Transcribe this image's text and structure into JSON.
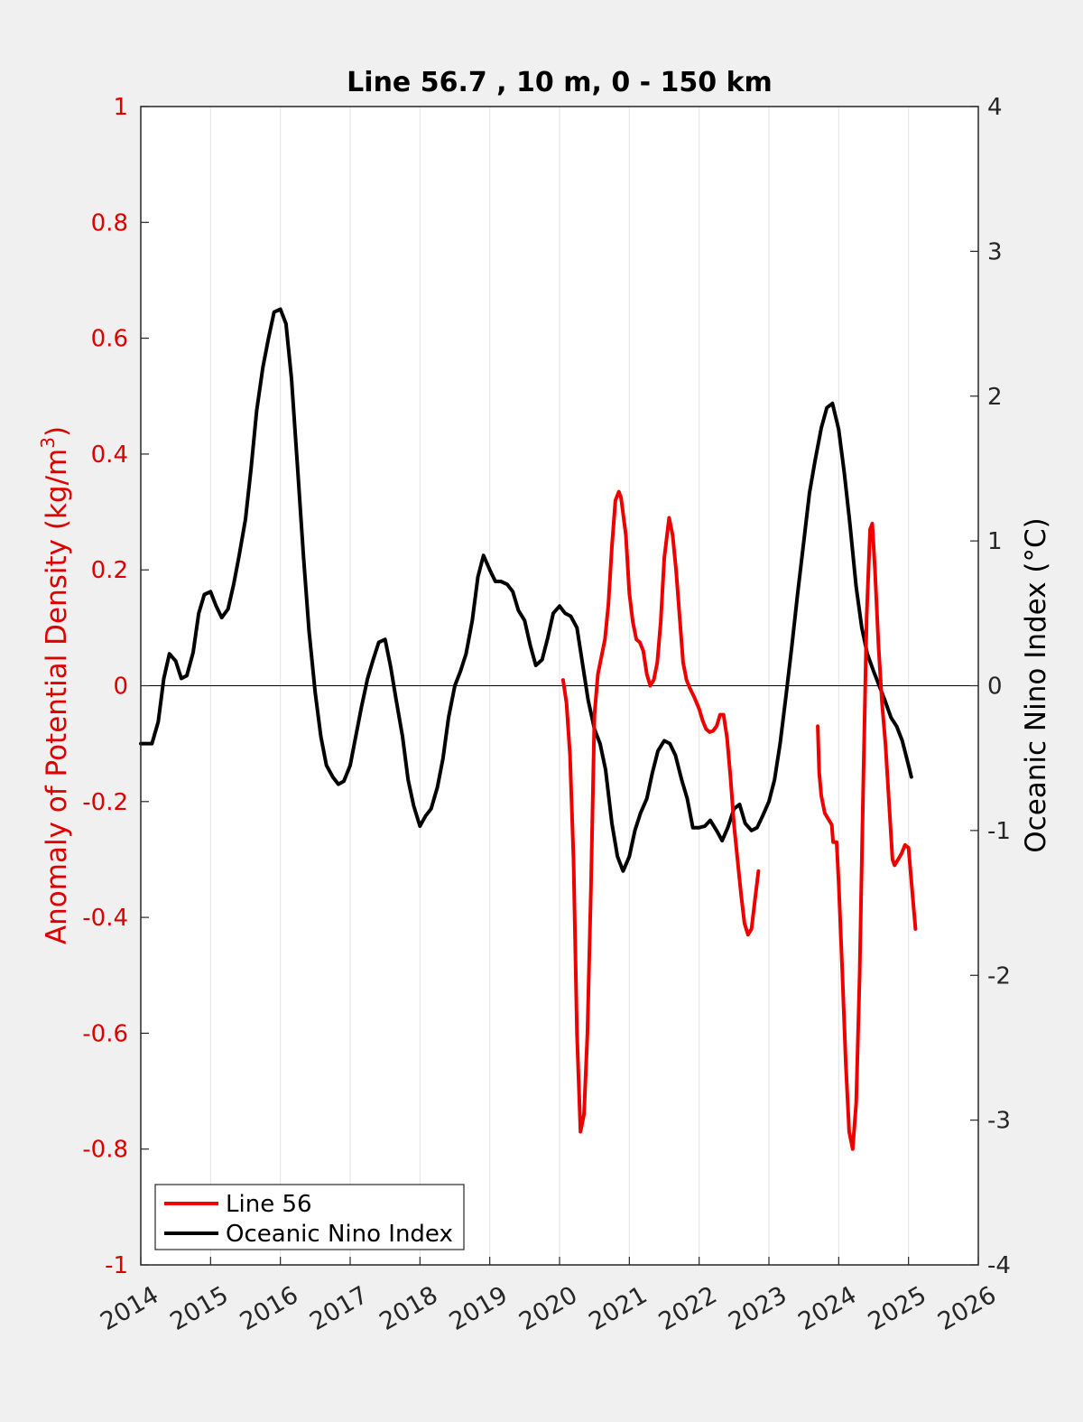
{
  "chart_data": {
    "type": "line",
    "title": "Line 56.7 , 10 m, 0 - 150 km",
    "xlabel": "",
    "ylabel_left": "Anomaly of Potential Density (kg/m",
    "ylabel_left_sup": "3",
    "ylabel_left_close": ")",
    "ylabel_right": "Oceanic Nino Index (°C)",
    "xlim": [
      2014,
      2026
    ],
    "ylim_left": [
      -1,
      1
    ],
    "ylim_right": [
      -4,
      4
    ],
    "x_ticks": [
      "2014",
      "2015",
      "2016",
      "2017",
      "2018",
      "2019",
      "2020",
      "2021",
      "2022",
      "2023",
      "2024",
      "2025",
      "2026"
    ],
    "y_ticks_left": [
      "1",
      "0.8",
      "0.6",
      "0.4",
      "0.2",
      "0",
      "-0.2",
      "-0.4",
      "-0.6",
      "-0.8",
      "-1"
    ],
    "y_ticks_right": [
      "4",
      "3",
      "2",
      "1",
      "0",
      "-1",
      "-2",
      "-3",
      "-4"
    ],
    "grid": "vertical",
    "legend_position": "bottom-left",
    "colors": {
      "line56": "#ee0000",
      "oni": "#000000",
      "left_axis": "#dd0000"
    },
    "series": [
      {
        "name": "Line 56",
        "axis": "left",
        "segments": [
          [
            [
              2020.05,
              0.01
            ],
            [
              2020.1,
              -0.03
            ],
            [
              2020.15,
              -0.12
            ],
            [
              2020.2,
              -0.3
            ],
            [
              2020.25,
              -0.6
            ],
            [
              2020.3,
              -0.77
            ],
            [
              2020.35,
              -0.74
            ],
            [
              2020.4,
              -0.6
            ],
            [
              2020.45,
              -0.35
            ],
            [
              2020.5,
              -0.05
            ],
            [
              2020.55,
              0.02
            ],
            [
              2020.6,
              0.05
            ],
            [
              2020.65,
              0.08
            ],
            [
              2020.7,
              0.14
            ],
            [
              2020.75,
              0.24
            ],
            [
              2020.8,
              0.32
            ],
            [
              2020.85,
              0.335
            ],
            [
              2020.88,
              0.325
            ],
            [
              2020.95,
              0.26
            ],
            [
              2021.0,
              0.16
            ],
            [
              2021.05,
              0.11
            ],
            [
              2021.1,
              0.08
            ],
            [
              2021.15,
              0.075
            ],
            [
              2021.2,
              0.06
            ],
            [
              2021.25,
              0.02
            ],
            [
              2021.3,
              0.0
            ],
            [
              2021.35,
              0.01
            ],
            [
              2021.4,
              0.04
            ],
            [
              2021.45,
              0.11
            ],
            [
              2021.5,
              0.22
            ],
            [
              2021.57,
              0.29
            ],
            [
              2021.62,
              0.26
            ],
            [
              2021.67,
              0.2
            ],
            [
              2021.72,
              0.12
            ],
            [
              2021.77,
              0.04
            ],
            [
              2021.82,
              0.01
            ],
            [
              2021.87,
              -0.005
            ],
            [
              2021.93,
              -0.02
            ],
            [
              2022.0,
              -0.04
            ],
            [
              2022.05,
              -0.06
            ],
            [
              2022.1,
              -0.075
            ],
            [
              2022.15,
              -0.08
            ],
            [
              2022.2,
              -0.078
            ],
            [
              2022.25,
              -0.07
            ],
            [
              2022.3,
              -0.05
            ],
            [
              2022.35,
              -0.05
            ],
            [
              2022.4,
              -0.09
            ],
            [
              2022.45,
              -0.16
            ],
            [
              2022.5,
              -0.24
            ],
            [
              2022.55,
              -0.3
            ],
            [
              2022.6,
              -0.36
            ],
            [
              2022.65,
              -0.41
            ],
            [
              2022.7,
              -0.43
            ],
            [
              2022.75,
              -0.42
            ],
            [
              2022.8,
              -0.37
            ],
            [
              2022.85,
              -0.32
            ]
          ],
          [
            [
              2023.7,
              -0.07
            ],
            [
              2023.72,
              -0.15
            ],
            [
              2023.75,
              -0.19
            ],
            [
              2023.8,
              -0.22
            ],
            [
              2023.85,
              -0.23
            ],
            [
              2023.9,
              -0.24
            ],
            [
              2023.92,
              -0.27
            ],
            [
              2023.97,
              -0.27
            ],
            [
              2024.0,
              -0.34
            ],
            [
              2024.05,
              -0.49
            ],
            [
              2024.1,
              -0.65
            ],
            [
              2024.15,
              -0.77
            ],
            [
              2024.2,
              -0.8
            ],
            [
              2024.25,
              -0.72
            ],
            [
              2024.3,
              -0.5
            ],
            [
              2024.35,
              -0.18
            ],
            [
              2024.4,
              0.12
            ],
            [
              2024.45,
              0.27
            ],
            [
              2024.48,
              0.28
            ],
            [
              2024.52,
              0.2
            ],
            [
              2024.57,
              0.07
            ],
            [
              2024.62,
              -0.03
            ],
            [
              2024.67,
              -0.1
            ],
            [
              2024.72,
              -0.2
            ],
            [
              2024.77,
              -0.3
            ],
            [
              2024.8,
              -0.31
            ],
            [
              2024.85,
              -0.3
            ],
            [
              2024.9,
              -0.29
            ],
            [
              2024.95,
              -0.275
            ],
            [
              2025.0,
              -0.28
            ],
            [
              2025.05,
              -0.35
            ],
            [
              2025.1,
              -0.42
            ]
          ]
        ]
      },
      {
        "name": "Oceanic Nino Index",
        "axis": "right",
        "segments": [
          [
            [
              2014.0,
              -0.4
            ],
            [
              2014.08,
              -0.4
            ],
            [
              2014.16,
              -0.4
            ],
            [
              2014.25,
              -0.25
            ],
            [
              2014.33,
              0.05
            ],
            [
              2014.41,
              0.22
            ],
            [
              2014.5,
              0.17
            ],
            [
              2014.58,
              0.05
            ],
            [
              2014.66,
              0.07
            ],
            [
              2014.75,
              0.23
            ],
            [
              2014.83,
              0.5
            ],
            [
              2014.91,
              0.63
            ],
            [
              2015.0,
              0.65
            ],
            [
              2015.08,
              0.55
            ],
            [
              2015.16,
              0.47
            ],
            [
              2015.25,
              0.53
            ],
            [
              2015.33,
              0.7
            ],
            [
              2015.41,
              0.9
            ],
            [
              2015.5,
              1.15
            ],
            [
              2015.58,
              1.5
            ],
            [
              2015.66,
              1.9
            ],
            [
              2015.75,
              2.2
            ],
            [
              2015.83,
              2.4
            ],
            [
              2015.91,
              2.58
            ],
            [
              2016.0,
              2.6
            ],
            [
              2016.08,
              2.5
            ],
            [
              2016.16,
              2.12
            ],
            [
              2016.25,
              1.48
            ],
            [
              2016.33,
              0.9
            ],
            [
              2016.41,
              0.38
            ],
            [
              2016.5,
              -0.05
            ],
            [
              2016.58,
              -0.35
            ],
            [
              2016.66,
              -0.55
            ],
            [
              2016.75,
              -0.63
            ],
            [
              2016.83,
              -0.68
            ],
            [
              2016.91,
              -0.66
            ],
            [
              2017.0,
              -0.55
            ],
            [
              2017.08,
              -0.35
            ],
            [
              2017.16,
              -0.15
            ],
            [
              2017.25,
              0.05
            ],
            [
              2017.33,
              0.18
            ],
            [
              2017.41,
              0.3
            ],
            [
              2017.5,
              0.32
            ],
            [
              2017.58,
              0.13
            ],
            [
              2017.66,
              -0.1
            ],
            [
              2017.75,
              -0.35
            ],
            [
              2017.83,
              -0.65
            ],
            [
              2017.91,
              -0.83
            ],
            [
              2018.0,
              -0.97
            ],
            [
              2018.08,
              -0.9
            ],
            [
              2018.16,
              -0.85
            ],
            [
              2018.25,
              -0.7
            ],
            [
              2018.33,
              -0.5
            ],
            [
              2018.41,
              -0.22
            ],
            [
              2018.5,
              0.0
            ],
            [
              2018.58,
              0.1
            ],
            [
              2018.66,
              0.22
            ],
            [
              2018.75,
              0.45
            ],
            [
              2018.83,
              0.75
            ],
            [
              2018.91,
              0.9
            ],
            [
              2019.0,
              0.8
            ],
            [
              2019.08,
              0.72
            ],
            [
              2019.16,
              0.72
            ],
            [
              2019.25,
              0.7
            ],
            [
              2019.33,
              0.65
            ],
            [
              2019.41,
              0.52
            ],
            [
              2019.5,
              0.45
            ],
            [
              2019.58,
              0.28
            ],
            [
              2019.66,
              0.14
            ],
            [
              2019.75,
              0.18
            ],
            [
              2019.83,
              0.33
            ],
            [
              2019.91,
              0.5
            ],
            [
              2020.0,
              0.55
            ],
            [
              2020.08,
              0.5
            ],
            [
              2020.16,
              0.48
            ],
            [
              2020.25,
              0.4
            ],
            [
              2020.33,
              0.15
            ],
            [
              2020.41,
              -0.1
            ],
            [
              2020.5,
              -0.3
            ],
            [
              2020.58,
              -0.4
            ],
            [
              2020.66,
              -0.58
            ],
            [
              2020.75,
              -0.95
            ],
            [
              2020.83,
              -1.18
            ],
            [
              2020.91,
              -1.28
            ],
            [
              2021.0,
              -1.18
            ],
            [
              2021.08,
              -1.0
            ],
            [
              2021.16,
              -0.88
            ],
            [
              2021.25,
              -0.78
            ],
            [
              2021.33,
              -0.6
            ],
            [
              2021.41,
              -0.45
            ],
            [
              2021.5,
              -0.38
            ],
            [
              2021.58,
              -0.4
            ],
            [
              2021.66,
              -0.48
            ],
            [
              2021.75,
              -0.65
            ],
            [
              2021.83,
              -0.78
            ],
            [
              2021.91,
              -0.98
            ],
            [
              2022.0,
              -0.98
            ],
            [
              2022.08,
              -0.97
            ],
            [
              2022.16,
              -0.93
            ],
            [
              2022.25,
              -1.0
            ],
            [
              2022.33,
              -1.07
            ],
            [
              2022.41,
              -0.98
            ],
            [
              2022.5,
              -0.85
            ],
            [
              2022.58,
              -0.82
            ],
            [
              2022.66,
              -0.95
            ],
            [
              2022.75,
              -1.0
            ],
            [
              2022.83,
              -0.98
            ],
            [
              2022.91,
              -0.9
            ],
            [
              2023.0,
              -0.8
            ],
            [
              2023.08,
              -0.65
            ],
            [
              2023.16,
              -0.4
            ],
            [
              2023.25,
              -0.05
            ],
            [
              2023.33,
              0.28
            ],
            [
              2023.41,
              0.63
            ],
            [
              2023.5,
              1.0
            ],
            [
              2023.58,
              1.33
            ],
            [
              2023.66,
              1.55
            ],
            [
              2023.75,
              1.78
            ],
            [
              2023.83,
              1.92
            ],
            [
              2023.91,
              1.95
            ],
            [
              2024.0,
              1.77
            ],
            [
              2024.08,
              1.47
            ],
            [
              2024.16,
              1.12
            ],
            [
              2024.25,
              0.68
            ],
            [
              2024.33,
              0.4
            ],
            [
              2024.41,
              0.22
            ],
            [
              2024.5,
              0.1
            ],
            [
              2024.58,
              0.0
            ],
            [
              2024.66,
              -0.1
            ],
            [
              2024.75,
              -0.22
            ],
            [
              2024.83,
              -0.28
            ],
            [
              2024.91,
              -0.38
            ],
            [
              2025.0,
              -0.55
            ],
            [
              2025.04,
              -0.63
            ]
          ]
        ]
      }
    ]
  }
}
